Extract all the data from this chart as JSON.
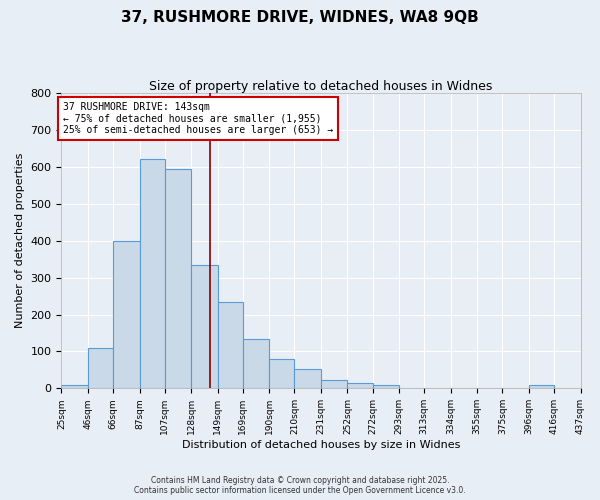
{
  "title_line1": "37, RUSHMORE DRIVE, WIDNES, WA8 9QB",
  "title_line2": "Size of property relative to detached houses in Widnes",
  "xlabel": "Distribution of detached houses by size in Widnes",
  "ylabel": "Number of detached properties",
  "bin_edges": [
    25,
    46,
    66,
    87,
    107,
    128,
    149,
    169,
    190,
    210,
    231,
    252,
    272,
    293,
    313,
    334,
    355,
    375,
    396,
    416,
    437
  ],
  "bar_heights": [
    8,
    110,
    400,
    620,
    595,
    335,
    235,
    135,
    80,
    52,
    22,
    15,
    10,
    0,
    0,
    0,
    0,
    0,
    8,
    0
  ],
  "bar_facecolor": "#c9d9e8",
  "bar_edgecolor": "#5b9bd5",
  "vline_x": 143,
  "vline_color": "#8b0000",
  "annotation_line1": "37 RUSHMORE DRIVE: 143sqm",
  "annotation_line2": "← 75% of detached houses are smaller (1,955)",
  "annotation_line3": "25% of semi-detached houses are larger (653) →",
  "annotation_box_facecolor": "white",
  "annotation_box_edgecolor": "#cc0000",
  "ylim": [
    0,
    800
  ],
  "yticks": [
    0,
    100,
    200,
    300,
    400,
    500,
    600,
    700,
    800
  ],
  "background_color": "#e8eef5",
  "footer_line1": "Contains HM Land Registry data © Crown copyright and database right 2025.",
  "footer_line2": "Contains public sector information licensed under the Open Government Licence v3.0.",
  "figsize": [
    6.0,
    5.0
  ],
  "dpi": 100
}
